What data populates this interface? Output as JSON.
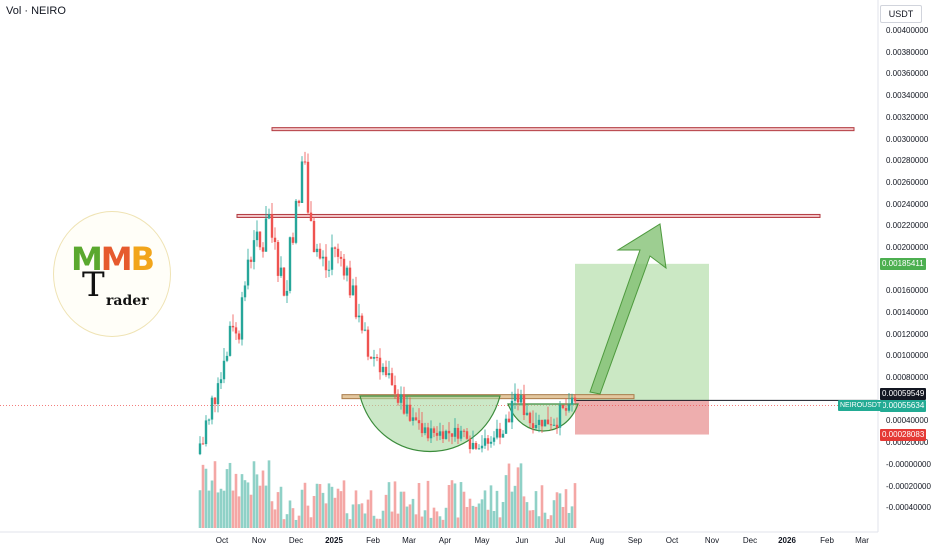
{
  "header": {
    "label": "Vol · NEIRO",
    "unit_badge": "USDT"
  },
  "logo": {
    "top_text_parts": [
      "M",
      "M",
      "B"
    ],
    "big_letter": "T",
    "rest_text": "rader"
  },
  "y_axis_ticks": [
    "0.00400000",
    "0.00380000",
    "0.00360000",
    "0.00340000",
    "0.00320000",
    "0.00300000",
    "0.00280000",
    "0.00260000",
    "0.00240000",
    "0.00220000",
    "0.00200000",
    "0.00160000",
    "0.00140000",
    "0.00120000",
    "0.00100000",
    "0.00080000",
    "0.00040000",
    "0.00020000",
    "-0.00000000",
    "-0.00020000",
    "-0.00040000"
  ],
  "price_tags": {
    "target": "0.00185411",
    "last": "0.00059549",
    "current": "0.00055634",
    "stop": "0.00028083",
    "symbol": "NEIROUSDT"
  },
  "x_axis_ticks": [
    {
      "label": "Oct",
      "bold": false
    },
    {
      "label": "Nov",
      "bold": false
    },
    {
      "label": "Dec",
      "bold": false
    },
    {
      "label": "2025",
      "bold": true
    },
    {
      "label": "Feb",
      "bold": false
    },
    {
      "label": "Mar",
      "bold": false
    },
    {
      "label": "Apr",
      "bold": false
    },
    {
      "label": "May",
      "bold": false
    },
    {
      "label": "Jun",
      "bold": false
    },
    {
      "label": "Jul",
      "bold": false
    },
    {
      "label": "Aug",
      "bold": false
    },
    {
      "label": "Sep",
      "bold": false
    },
    {
      "label": "Oct",
      "bold": false
    },
    {
      "label": "Nov",
      "bold": false
    },
    {
      "label": "Dec",
      "bold": false
    },
    {
      "label": "2026",
      "bold": true
    },
    {
      "label": "Feb",
      "bold": false
    },
    {
      "label": "Mar",
      "bold": false
    }
  ],
  "colors": {
    "up": "#26a69a",
    "down": "#ef5350",
    "vol_up": "#8fd1c7",
    "vol_down": "#f4a7a5",
    "resistance": "#b2393f",
    "target_zone": "#b9e0b0",
    "stop_zone": "#eba0a0",
    "arrow": "#7cbe6c"
  },
  "chart_data": {
    "type": "candlestick",
    "pair": "NEIROUSDT",
    "y_range": [
      -0.0005,
      0.0041
    ],
    "levels": [
      {
        "name": "resistance_top",
        "price": 0.0031
      },
      {
        "name": "resistance_mid",
        "price": 0.0023
      },
      {
        "name": "neckline",
        "price": 0.00063
      }
    ],
    "trade": {
      "entry": 0.00059549,
      "target": 0.00185411,
      "stop": 0.00028083
    },
    "close_series": [
      0.0002,
      0.0004,
      0.0006,
      0.0008,
      0.001,
      0.0013,
      0.0012,
      0.0016,
      0.0019,
      0.0021,
      0.002,
      0.0023,
      0.0021,
      0.0018,
      0.0016,
      0.0021,
      0.0024,
      0.0028,
      0.0023,
      0.002,
      0.0019,
      0.0018,
      0.002,
      0.0019,
      0.0018,
      0.0016,
      0.0014,
      0.0012,
      0.001,
      0.001,
      0.0009,
      0.0008,
      0.0007,
      0.0006,
      0.0005,
      0.0004,
      0.0004,
      0.0003,
      0.0003,
      0.0003,
      0.0003,
      0.0003,
      0.0003,
      0.0003,
      0.0003,
      0.0002,
      0.0002,
      0.0002,
      0.0002,
      0.0003,
      0.0003,
      0.0004,
      0.0006,
      0.0006,
      0.0005,
      0.0004,
      0.0004,
      0.0004,
      0.0004,
      0.0004,
      0.0005,
      0.0005,
      0.0006
    ]
  }
}
